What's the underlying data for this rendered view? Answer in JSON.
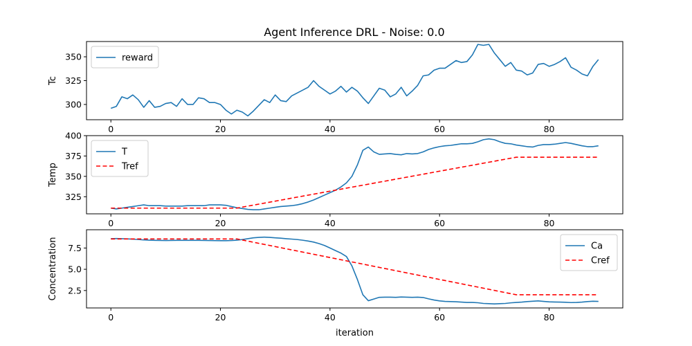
{
  "title": "Agent Inference DRL - Noise: 0.0",
  "colors": {
    "series1": "#1f77b4",
    "reference": "#ff0000",
    "axes": "#000000",
    "background": "#ffffff"
  },
  "chart_data": [
    {
      "type": "line",
      "title": "Agent Inference DRL - Noise: 0.0",
      "xlabel": "",
      "ylabel": "Tc",
      "xlim": [
        -4.45,
        93.45
      ],
      "ylim": [
        284,
        366
      ],
      "xticks": [
        0,
        20,
        40,
        60,
        80
      ],
      "yticks": [
        300,
        325,
        350
      ],
      "legend_loc": "upper-left",
      "series": [
        {
          "name": "reward",
          "style": "solid",
          "color": "#1f77b4",
          "values": [
            296,
            298,
            308,
            306,
            310,
            305,
            297,
            304,
            297,
            298,
            301,
            302,
            298,
            306,
            300,
            300,
            307,
            306,
            302,
            302,
            300,
            294,
            290,
            294,
            292,
            288,
            293,
            299,
            305,
            302,
            310,
            304,
            303,
            309,
            312,
            315,
            318,
            325,
            319,
            315,
            311,
            314,
            319,
            313,
            318,
            314,
            307,
            301,
            309,
            317,
            315,
            308,
            311,
            318,
            309,
            314,
            320,
            330,
            331,
            336,
            338,
            338,
            342,
            346,
            344,
            345,
            352,
            363,
            362,
            363,
            354,
            347,
            340,
            344,
            336,
            335,
            331,
            333,
            342,
            343,
            340,
            342,
            345,
            349,
            339,
            336,
            332,
            330,
            340,
            347
          ]
        }
      ]
    },
    {
      "type": "line",
      "xlabel": "",
      "ylabel": "Temp",
      "xlim": [
        -4.45,
        93.45
      ],
      "ylim": [
        304,
        400
      ],
      "xticks": [
        0,
        20,
        40,
        60,
        80
      ],
      "yticks": [
        325,
        350,
        375,
        400
      ],
      "legend_loc": "upper-left",
      "series": [
        {
          "name": "T",
          "style": "solid",
          "color": "#1f77b4",
          "values": [
            311,
            310,
            311,
            312,
            313,
            314,
            315,
            314,
            314,
            314,
            313.5,
            313.5,
            313.5,
            313.5,
            314,
            314,
            314,
            314,
            315,
            315,
            315,
            314.5,
            313,
            311.5,
            310.5,
            309.5,
            309,
            309,
            310,
            311,
            312,
            313,
            313.5,
            314,
            315,
            316.5,
            318.5,
            321,
            324,
            327,
            330,
            333,
            337,
            342,
            350,
            364,
            382,
            386,
            380,
            377,
            377.5,
            378,
            377,
            376.5,
            378,
            377.5,
            378,
            380,
            383,
            385,
            386.5,
            387.5,
            388,
            389,
            390,
            390,
            390.5,
            392.5,
            395,
            396,
            395,
            392.5,
            390.5,
            390,
            388.5,
            387.5,
            386.5,
            386,
            388,
            389,
            389,
            389.5,
            390.5,
            391.5,
            390.5,
            389,
            387.5,
            386.5,
            386.5,
            387.5
          ]
        },
        {
          "name": "Tref",
          "style": "dashed",
          "color": "#ff0000",
          "x": [
            0,
            23,
            74,
            89
          ],
          "values": [
            311,
            311,
            373.5,
            373.5
          ]
        }
      ]
    },
    {
      "type": "line",
      "xlabel": "iteration",
      "ylabel": "Concentration",
      "xlim": [
        -4.45,
        93.45
      ],
      "ylim": [
        0.45,
        9.65
      ],
      "xticks": [
        0,
        20,
        40,
        60,
        80
      ],
      "yticks": [
        2.5,
        5.0,
        7.5
      ],
      "ytick_labels": [
        "2.5",
        "5.0",
        "7.5"
      ],
      "legend_loc": "upper-right",
      "series": [
        {
          "name": "Ca",
          "style": "solid",
          "color": "#1f77b4",
          "values": [
            8.6,
            8.62,
            8.6,
            8.58,
            8.54,
            8.5,
            8.45,
            8.42,
            8.4,
            8.39,
            8.38,
            8.39,
            8.4,
            8.4,
            8.4,
            8.4,
            8.4,
            8.39,
            8.38,
            8.37,
            8.36,
            8.36,
            8.38,
            8.42,
            8.5,
            8.6,
            8.7,
            8.75,
            8.78,
            8.75,
            8.7,
            8.66,
            8.6,
            8.55,
            8.5,
            8.42,
            8.32,
            8.2,
            8.02,
            7.8,
            7.5,
            7.2,
            6.9,
            6.5,
            5.4,
            3.8,
            2.0,
            1.3,
            1.5,
            1.7,
            1.72,
            1.72,
            1.7,
            1.74,
            1.72,
            1.7,
            1.72,
            1.68,
            1.52,
            1.38,
            1.28,
            1.22,
            1.2,
            1.18,
            1.14,
            1.1,
            1.1,
            1.06,
            0.98,
            0.95,
            0.92,
            0.95,
            0.98,
            1.05,
            1.1,
            1.14,
            1.2,
            1.24,
            1.28,
            1.22,
            1.17,
            1.15,
            1.14,
            1.12,
            1.08,
            1.1,
            1.14,
            1.2,
            1.24,
            1.22
          ]
        },
        {
          "name": "Cref",
          "style": "dashed",
          "color": "#ff0000",
          "x": [
            0,
            23,
            74,
            89
          ],
          "values": [
            8.57,
            8.57,
            2.0,
            2.0
          ]
        }
      ]
    }
  ]
}
